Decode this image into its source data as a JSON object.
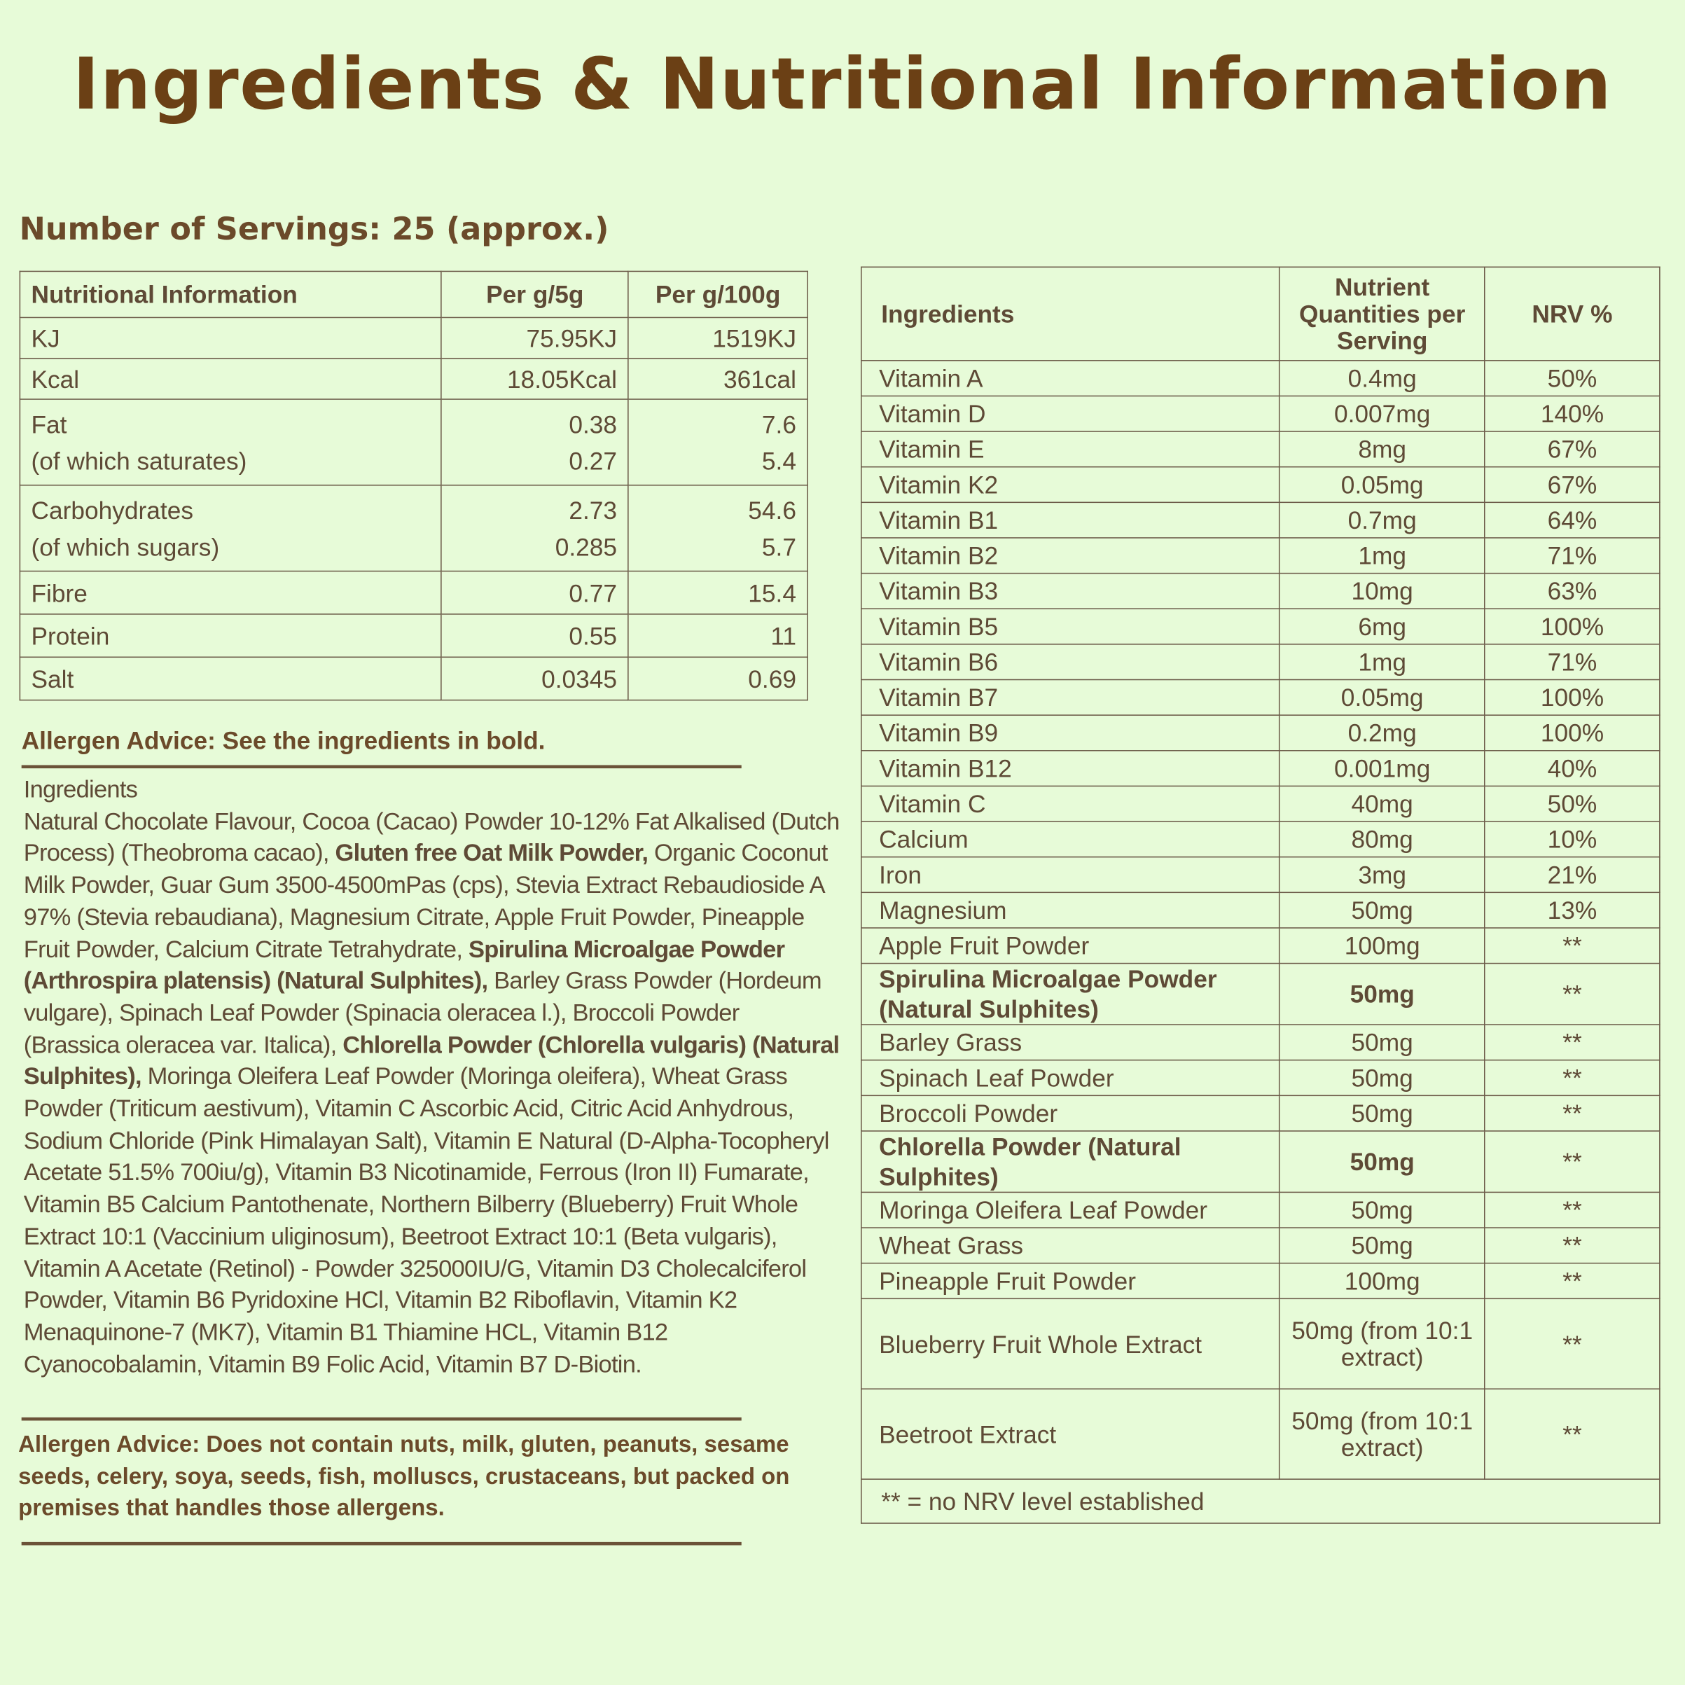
{
  "title": "Ingredients & Nutritional Information",
  "servings": "Number of Servings: 25 (approx.)",
  "nutrition_table": {
    "headers": [
      "Nutritional Information",
      "Per g/5g",
      "Per g/100g"
    ],
    "rows": [
      {
        "label": "KJ",
        "per5": "75.95KJ",
        "per100": "1519KJ"
      },
      {
        "label": "Kcal",
        "per5": "18.05Kcal",
        "per100": "361cal"
      },
      {
        "label": "Fat",
        "sub": "(of which saturates)",
        "per5": "0.38",
        "per5sub": "0.27",
        "per100": "7.6",
        "per100sub": "5.4"
      },
      {
        "label": "Carbohydrates",
        "sub": "(of which sugars)",
        "per5": "2.73",
        "per5sub": "0.285",
        "per100": "54.6",
        "per100sub": "5.7"
      },
      {
        "label": "Fibre",
        "per5": "0.77",
        "per100": "15.4"
      },
      {
        "label": "Protein",
        "per5": "0.55",
        "per100": "11"
      },
      {
        "label": "Salt",
        "per5": "0.0345",
        "per100": "0.69"
      }
    ]
  },
  "allergen_advice_1": "Allergen Advice: See the ingredients in bold.",
  "ingredients_heading": "Ingredients",
  "ingredients_segments": [
    {
      "text": "Natural Chocolate Flavour, Cocoa (Cacao) Powder 10-12% Fat Alkalised (Dutch Process) (Theobroma cacao), ",
      "bold": false
    },
    {
      "text": "Gluten free Oat Milk Powder,",
      "bold": true
    },
    {
      "text": " Organic Coconut Milk Powder, Guar Gum 3500-4500mPas (cps), Stevia Extract Rebaudioside A 97% (Stevia rebaudiana), Magnesium Citrate, Apple Fruit Powder, Pineapple Fruit Powder, Calcium Citrate Tetrahydrate, ",
      "bold": false
    },
    {
      "text": "Spirulina Microalgae Powder (Arthrospira platensis) (Natural Sulphites),",
      "bold": true
    },
    {
      "text": " Barley Grass Powder (Hordeum vulgare), Spinach Leaf Powder (Spinacia oleracea l.), Broccoli Powder (Brassica oleracea var. Italica), ",
      "bold": false
    },
    {
      "text": "Chlorella Powder (Chlorella vulgaris) (Natural Sulphites),",
      "bold": true
    },
    {
      "text": " Moringa Oleifera Leaf Powder (Moringa oleifera), Wheat Grass Powder (Triticum aestivum), Vitamin C Ascorbic Acid, Citric Acid Anhydrous, Sodium Chloride (Pink Himalayan Salt), Vitamin E Natural (D-Alpha-Tocopheryl Acetate 51.5% 700iu/g), Vitamin B3 Nicotinamide, Ferrous (Iron II) Fumarate, Vitamin B5 Calcium Pantothenate, Northern Bilberry (Blueberry) Fruit Whole Extract 10:1 (Vaccinium uliginosum), Beetroot Extract 10:1 (Beta vulgaris), Vitamin A Acetate (Retinol) - Powder 325000IU/G, Vitamin D3 Cholecalciferol Powder, Vitamin B6 Pyridoxine HCl, Vitamin B2 Riboflavin, Vitamin K2 Menaquinone-7 (MK7), Vitamin B1 Thiamine HCL, Vitamin B12 Cyanocobalamin, Vitamin B9 Folic Acid, Vitamin B7 D-Biotin.",
      "bold": false
    }
  ],
  "allergen_advice_2": "Allergen Advice: Does not contain nuts, milk, gluten, peanuts, sesame seeds, celery, soya, seeds, fish, molluscs, crustaceans, but packed on premises that handles those allergens.",
  "ingredients_table": {
    "headers": [
      "Ingredients",
      "Nutrient Quantities per Serving",
      "NRV %"
    ],
    "rows": [
      {
        "name": "Vitamin A",
        "qty": "0.4mg",
        "nrv": "50%"
      },
      {
        "name": "Vitamin D",
        "qty": "0.007mg",
        "nrv": "140%"
      },
      {
        "name": "Vitamin E",
        "qty": "8mg",
        "nrv": "67%"
      },
      {
        "name": "Vitamin K2",
        "qty": "0.05mg",
        "nrv": "67%"
      },
      {
        "name": "Vitamin B1",
        "qty": "0.7mg",
        "nrv": "64%"
      },
      {
        "name": "Vitamin B2",
        "qty": "1mg",
        "nrv": "71%"
      },
      {
        "name": "Vitamin B3",
        "qty": "10mg",
        "nrv": "63%"
      },
      {
        "name": "Vitamin B5",
        "qty": "6mg",
        "nrv": "100%"
      },
      {
        "name": "Vitamin B6",
        "qty": "1mg",
        "nrv": "71%"
      },
      {
        "name": "Vitamin B7",
        "qty": "0.05mg",
        "nrv": "100%"
      },
      {
        "name": "Vitamin B9",
        "qty": "0.2mg",
        "nrv": "100%"
      },
      {
        "name": "Vitamin B12",
        "qty": "0.001mg",
        "nrv": "40%"
      },
      {
        "name": "Vitamin C",
        "qty": "40mg",
        "nrv": "50%"
      },
      {
        "name": "Calcium",
        "qty": "80mg",
        "nrv": "10%"
      },
      {
        "name": "Iron",
        "qty": "3mg",
        "nrv": "21%"
      },
      {
        "name": "Magnesium",
        "qty": "50mg",
        "nrv": "13%"
      },
      {
        "name": "Apple Fruit Powder",
        "qty": "100mg",
        "nrv": "**"
      },
      {
        "name": "Spirulina Microalgae Powder (Natural Sulphites)",
        "qty": "50mg",
        "nrv": "**",
        "bold": true
      },
      {
        "name": "Barley Grass",
        "qty": "50mg",
        "nrv": "**"
      },
      {
        "name": "Spinach Leaf Powder",
        "qty": "50mg",
        "nrv": "**"
      },
      {
        "name": "Broccoli Powder",
        "qty": "50mg",
        "nrv": "**"
      },
      {
        "name": "Chlorella Powder (Natural Sulphites)",
        "qty": "50mg",
        "nrv": "**",
        "bold": true
      },
      {
        "name": "Moringa Oleifera Leaf Powder",
        "qty": "50mg",
        "nrv": "**"
      },
      {
        "name": "Wheat Grass",
        "qty": "50mg",
        "nrv": "**"
      },
      {
        "name": "Pineapple Fruit Powder",
        "qty": "100mg",
        "nrv": "**"
      },
      {
        "name": "Blueberry Fruit Whole Extract",
        "qty": "50mg (from 10:1 extract)",
        "nrv": "**"
      },
      {
        "name": "Beetroot Extract",
        "qty": "50mg (from 10:1 extract)",
        "nrv": "**"
      }
    ],
    "footnote": "** = no NRV level established"
  },
  "colors": {
    "background": "#e7fbd8",
    "title": "#6b4015",
    "text": "#5e4a36"
  }
}
